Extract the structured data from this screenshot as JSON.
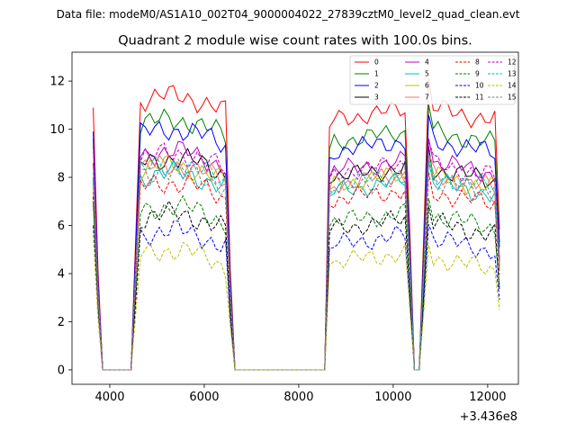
{
  "chart_data": {
    "type": "line",
    "suptitle": "Data file: modeM0/AS1A10_002T04_9000004022_27839cztM0_level2_quad_clean.evt",
    "title": "Quadrant 2 module wise count rates with 100.0s bins.",
    "xlabel": "",
    "ylabel": "",
    "x_offset_label": "+3.436e8",
    "xlim": [
      3200,
      12650
    ],
    "ylim": [
      -0.6,
      13.2
    ],
    "xticks": [
      4000,
      6000,
      8000,
      10000,
      12000
    ],
    "xtick_labels": [
      "4000",
      "6000",
      "8000",
      "10000",
      "12000"
    ],
    "yticks": [
      0,
      2,
      4,
      6,
      8,
      10,
      12
    ],
    "ytick_labels": [
      "0",
      "2",
      "4",
      "6",
      "8",
      "10",
      "12"
    ],
    "grid": false,
    "legend_position": "top-right",
    "segments": [
      {
        "start": 3650,
        "n": 9
      },
      {
        "start": 4650,
        "n": 21
      },
      {
        "start": 6650,
        "n": 20
      },
      {
        "start": 8650,
        "n": 17
      },
      {
        "start": 10350,
        "n": 4
      },
      {
        "start": 10750,
        "n": 16
      }
    ],
    "series": [
      {
        "name": "0",
        "color": "#ff0000",
        "dash": "solid",
        "level": 11.2,
        "start": 10.9
      },
      {
        "name": "1",
        "color": "#008000",
        "dash": "solid",
        "level": 10.2,
        "start": 9.6
      },
      {
        "name": "2",
        "color": "#0000ff",
        "dash": "solid",
        "level": 9.8,
        "start": 9.9
      },
      {
        "name": "3",
        "color": "#000000",
        "dash": "solid",
        "level": 8.6,
        "start": 8.0
      },
      {
        "name": "4",
        "color": "#bf00bf",
        "dash": "solid",
        "level": 8.9,
        "start": 8.6
      },
      {
        "name": "5",
        "color": "#00bfbf",
        "dash": "solid",
        "level": 8.0,
        "start": 7.8
      },
      {
        "name": "6",
        "color": "#bfbf00",
        "dash": "solid",
        "level": 8.3,
        "start": 7.6
      },
      {
        "name": "7",
        "color": "#ff6f6f",
        "dash": "solid",
        "level": 8.3,
        "start": 8.4
      },
      {
        "name": "8",
        "color": "#ff0000",
        "dash": "dashed",
        "level": 7.6,
        "start": 7.4
      },
      {
        "name": "9",
        "color": "#008000",
        "dash": "dashed",
        "level": 6.6,
        "start": 6.9
      },
      {
        "name": "10",
        "color": "#0000ff",
        "dash": "dashed",
        "level": 5.6,
        "start": 6.0
      },
      {
        "name": "11",
        "color": "#000000",
        "dash": "dashed",
        "level": 6.3,
        "start": 7.2
      },
      {
        "name": "12",
        "color": "#bf00bf",
        "dash": "dashed",
        "level": 8.8,
        "start": 9.3
      },
      {
        "name": "13",
        "color": "#00bfbf",
        "dash": "dashed",
        "level": 8.3,
        "start": 8.2
      },
      {
        "name": "14",
        "color": "#bfbf00",
        "dash": "dashed",
        "level": 4.8,
        "start": 5.6
      },
      {
        "name": "15",
        "color": "#808080",
        "dash": "dashed",
        "level": 8.1,
        "start": 7.8
      }
    ]
  }
}
